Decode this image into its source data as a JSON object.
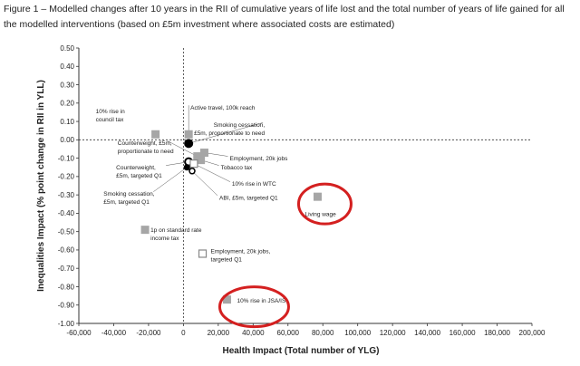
{
  "figure": {
    "title": "Figure 1 – Modelled changes after 10 years in the RII of cumulative years of life lost and the total number of years of life gained for all the modelled interventions (based on £5m investment where associated costs are estimated)"
  },
  "chart_data": {
    "type": "scatter",
    "xlabel": "Health Impact (Total number of YLG)",
    "ylabel": "Inequalities Impact (% point change in RII in YLL)",
    "xlim": [
      -60000,
      200000
    ],
    "ylim": [
      -1.0,
      0.5
    ],
    "x_ticks": [
      "-60,000",
      "-40,000",
      "-20,000",
      "0",
      "20,000",
      "40,000",
      "60,000",
      "80,000",
      "100,000",
      "120,000",
      "140,000",
      "160,000",
      "180,000",
      "200,000"
    ],
    "y_ticks": [
      "0.50",
      "0.40",
      "0.30",
      "0.20",
      "0.10",
      "0.00",
      "-0.10",
      "-0.20",
      "-0.30",
      "-0.40",
      "-0.50",
      "-0.60",
      "-0.70",
      "-0.80",
      "-0.90",
      "-1.00"
    ],
    "grid": false,
    "reference_lines": [
      "x=0 dashed",
      "y=0 dashed"
    ],
    "points": [
      {
        "label": "10% rise in council tax",
        "lines": [
          "10% rise in",
          "council tax"
        ],
        "x": -16000,
        "y": 0.03,
        "marker": "square-gray"
      },
      {
        "label": "Active travel, 100k reach",
        "lines": [
          "Active travel, 100k reach"
        ],
        "x": 3000,
        "y": 0.03,
        "marker": "square-gray"
      },
      {
        "label": "Smoking cessation, £5m, proportionate to need",
        "lines": [
          "Smoking cessation,",
          "£5m, proportionate to need"
        ],
        "x": 3000,
        "y": -0.02,
        "marker": "circle-black"
      },
      {
        "label": "Employment, 20k jobs",
        "lines": [
          "Employment, 20k jobs"
        ],
        "x": 12000,
        "y": -0.07,
        "marker": "square-gray"
      },
      {
        "label": "Counterweight, £5m, proportionate to need",
        "lines": [
          "Counterweight, £5m,",
          "proportionate to need"
        ],
        "x": 8000,
        "y": -0.09,
        "marker": "square-gray"
      },
      {
        "label": "Tobacco tax",
        "lines": [
          "Tobacco tax"
        ],
        "x": 10000,
        "y": -0.11,
        "marker": "square-gray"
      },
      {
        "label": "Counterweight, £5m, targeted Q1",
        "lines": [
          "Counterweight,",
          "£5m, targeted Q1"
        ],
        "x": 3000,
        "y": -0.12,
        "marker": "circle-open"
      },
      {
        "label": "10% rise in WTC",
        "lines": [
          "10% rise in WTC"
        ],
        "x": 6000,
        "y": -0.13,
        "marker": "square-open"
      },
      {
        "label": "Smoking cessation, £5m, targeted Q1",
        "lines": [
          "Smoking cessation,",
          "£5m, targeted Q1"
        ],
        "x": 2000,
        "y": -0.15,
        "marker": "circle-black-small"
      },
      {
        "label": "ABI, £5m, targeted Q1",
        "lines": [
          "ABI, £5m, targeted Q1"
        ],
        "x": 5000,
        "y": -0.17,
        "marker": "circle-open-small"
      },
      {
        "label": "Living wage",
        "lines": [
          "Living wage"
        ],
        "x": 77000,
        "y": -0.31,
        "marker": "square-gray",
        "highlight": true
      },
      {
        "label": "1p on standard rate income tax",
        "lines": [
          "1p on standard rate",
          "income tax"
        ],
        "x": -22000,
        "y": -0.49,
        "marker": "square-gray"
      },
      {
        "label": "Employment, 20k jobs, targeted Q1",
        "lines": [
          "Employment, 20k jobs,",
          "targeted Q1"
        ],
        "x": 11000,
        "y": -0.62,
        "marker": "square-open"
      },
      {
        "label": "10% rise in JSA/IS",
        "lines": [
          "10% rise in JSA/IS"
        ],
        "x": 25000,
        "y": -0.87,
        "marker": "square-gray",
        "highlight": true
      }
    ],
    "highlight_color": "#d42020",
    "marker_gray": "#a6a6a6"
  }
}
